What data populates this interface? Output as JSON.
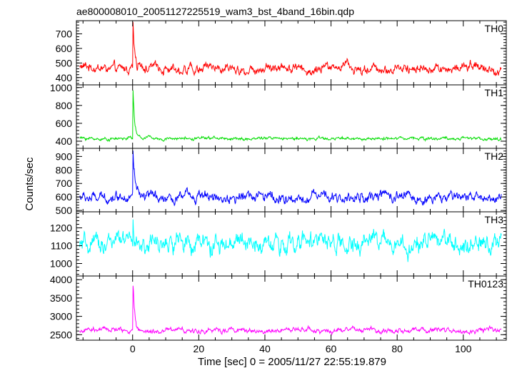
{
  "title": "ae800008010_20051127225519_wam3_bst_4band_16bin.qdp",
  "xlabel": "Time [sec] 0 = 2005/11/27 22:55:19.879",
  "ylabel": "Counts/sec",
  "chart_data": {
    "type": "line",
    "xlim": [
      -17,
      113
    ],
    "x_ticks": [
      0,
      20,
      40,
      60,
      80,
      100
    ],
    "x_tick_labels": [
      "0",
      "20",
      "40",
      "60",
      "80",
      "100"
    ],
    "sampling": {
      "x_start": -16,
      "x_end": 111.6,
      "bin_sec": 0.0625
    },
    "panels": [
      {
        "name": "TH0",
        "color": "#ff0000",
        "ylim": [
          350,
          790
        ],
        "y_ticks": [
          400,
          500,
          600,
          700
        ],
        "y_tick_labels": [
          "400",
          "500",
          "600",
          "700"
        ],
        "baseline": 465,
        "noise": 38,
        "burst": {
          "t0": 0.1,
          "peak": 790,
          "decay": 0.55
        }
      },
      {
        "name": "TH1",
        "color": "#00dd00",
        "ylim": [
          320,
          1030
        ],
        "y_ticks": [
          400,
          600,
          800,
          1000
        ],
        "y_tick_labels": [
          "400",
          "600",
          "800",
          "1000"
        ],
        "baseline": 430,
        "noise": 20,
        "burst": {
          "t0": 0.1,
          "peak": 1020,
          "decay": 0.5
        }
      },
      {
        "name": "TH2",
        "color": "#0000ff",
        "ylim": [
          490,
          960
        ],
        "y_ticks": [
          500,
          600,
          700,
          800,
          900
        ],
        "y_tick_labels": [
          "500",
          "600",
          "700",
          "800",
          "900"
        ],
        "baseline": 600,
        "noise": 42,
        "burst": {
          "t0": 0.1,
          "peak": 950,
          "decay": 0.55
        }
      },
      {
        "name": "TH3",
        "color": "#00ffff",
        "ylim": [
          930,
          1290
        ],
        "y_ticks": [
          1000,
          1100,
          1200
        ],
        "y_tick_labels": [
          "1000",
          "1100",
          "1200"
        ],
        "baseline": 1110,
        "noise": 60,
        "burst": {
          "t0": 0.1,
          "peak": 1260,
          "decay": 0.3
        }
      },
      {
        "name": "TH0123",
        "color": "#ff00ff",
        "ylim": [
          2350,
          4100
        ],
        "y_ticks": [
          2500,
          3000,
          3500,
          4000
        ],
        "y_tick_labels": [
          "2500",
          "3000",
          "3500",
          "4000"
        ],
        "baseline": 2620,
        "noise": 75,
        "burst": {
          "t0": 0.1,
          "peak": 4050,
          "decay": 0.55
        }
      }
    ]
  }
}
